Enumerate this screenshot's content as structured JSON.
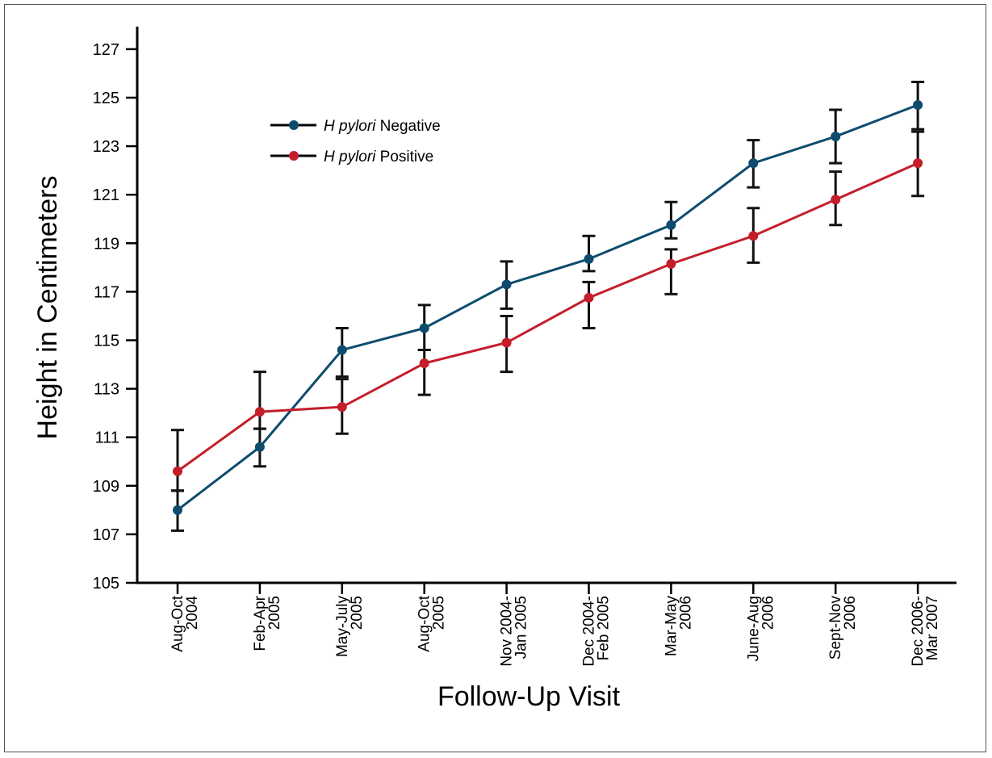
{
  "chart_data": {
    "type": "line",
    "title": "",
    "xlabel": "Follow-Up Visit",
    "ylabel": "Height in Centimeters",
    "ylim": [
      105,
      128
    ],
    "yticks": [
      105,
      107,
      109,
      111,
      113,
      115,
      117,
      119,
      121,
      123,
      125,
      127
    ],
    "grid": false,
    "legend_position": "top-left",
    "categories": [
      [
        "Aug-Oct",
        "2004"
      ],
      [
        "Feb-Apr",
        "2005"
      ],
      [
        "May-July",
        "2005"
      ],
      [
        "Aug-Oct",
        "2005"
      ],
      [
        "Nov 2004-",
        "Jan 2005"
      ],
      [
        "Dec 2004-",
        "Feb 2005"
      ],
      [
        "Mar-May",
        "2006"
      ],
      [
        "June-Aug",
        "2006"
      ],
      [
        "Sept-Nov",
        "2006"
      ],
      [
        "Dec 2006-",
        "Mar 2007"
      ]
    ],
    "series": [
      {
        "name_italic": "H pylori",
        "name_rest": " Negative",
        "color": "#0e4c6e",
        "values": [
          108.0,
          110.6,
          114.6,
          115.5,
          117.3,
          118.35,
          119.75,
          122.3,
          123.4,
          124.7
        ],
        "err_low": [
          107.15,
          109.8,
          113.5,
          114.6,
          116.3,
          117.85,
          119.2,
          121.3,
          122.3,
          123.7
        ],
        "err_high": [
          108.8,
          111.35,
          115.5,
          116.45,
          118.25,
          119.3,
          120.7,
          123.25,
          124.5,
          125.65
        ]
      },
      {
        "name_italic": "H pylori",
        "name_rest": " Positive",
        "color": "#c41e2a",
        "values": [
          109.6,
          112.05,
          112.25,
          114.05,
          114.9,
          116.75,
          118.15,
          119.3,
          120.8,
          122.3
        ],
        "err_low": [
          108.8,
          111.35,
          111.15,
          112.75,
          113.7,
          115.5,
          116.9,
          118.2,
          119.75,
          120.95
        ],
        "err_high": [
          111.3,
          113.7,
          113.4,
          114.6,
          116.0,
          117.4,
          118.75,
          120.45,
          121.95,
          123.6
        ]
      }
    ]
  }
}
